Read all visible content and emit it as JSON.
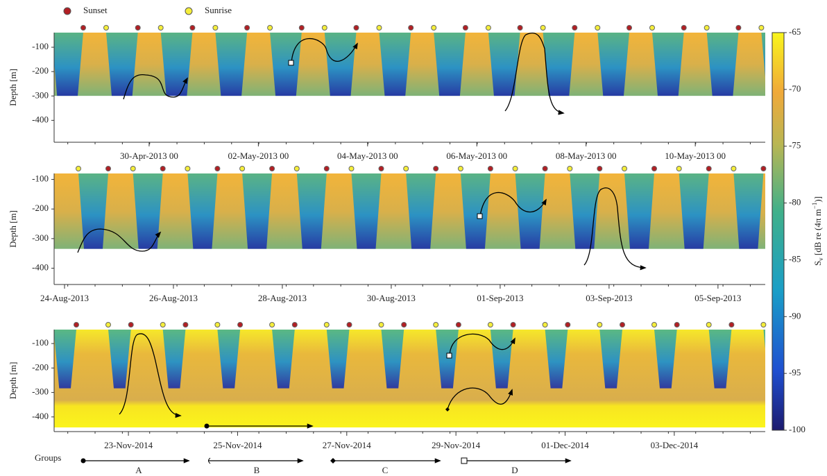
{
  "chart_data": [
    {
      "type": "heatmap",
      "ylabel": "Depth [m]",
      "ylim": [
        -490,
        -40
      ],
      "yticks": [
        -100,
        -200,
        -300,
        -400
      ],
      "xlim": [
        "2013-04-28T06:15",
        "2013-05-11T06:45"
      ],
      "xticks": [
        {
          "value": "2013-04-30T00:00",
          "label": "30-Apr-2013 00"
        },
        {
          "value": "2013-05-02T00:00",
          "label": "02-May-2013 00"
        },
        {
          "value": "2013-05-04T00:00",
          "label": "04-May-2013 00"
        },
        {
          "value": "2013-05-06T00:00",
          "label": "06-May-2013 00"
        },
        {
          "value": "2013-05-08T00:00",
          "label": "08-May-2013 00"
        },
        {
          "value": "2013-05-10T00:00",
          "label": "10-May-2013 00"
        }
      ]
    },
    {
      "type": "heatmap",
      "ylabel": "Depth [m]",
      "ylim": [
        -455,
        -80
      ],
      "yticks": [
        -100,
        -200,
        -300,
        -400
      ],
      "xlim": [
        "2013-08-23T19:25",
        "2013-09-05T20:50"
      ],
      "xticks": [
        {
          "value": "2013-08-24T00:00",
          "label": "24-Aug-2013"
        },
        {
          "value": "2013-08-26T00:00",
          "label": "26-Aug-2013"
        },
        {
          "value": "2013-08-28T00:00",
          "label": "28-Aug-2013"
        },
        {
          "value": "2013-08-30T00:00",
          "label": "30-Aug-2013"
        },
        {
          "value": "2013-09-01T00:00",
          "label": "01-Sep-2013"
        },
        {
          "value": "2013-09-03T00:00",
          "label": "03-Sep-2013"
        },
        {
          "value": "2013-09-05T00:00",
          "label": "05-Sep-2013"
        }
      ]
    },
    {
      "type": "heatmap",
      "ylabel": "Depth [m]",
      "ylim": [
        -460,
        -43
      ],
      "yticks": [
        -100,
        -200,
        -300,
        -400
      ],
      "xlim": [
        "2014-11-21T15:20",
        "2014-12-04T16:00"
      ],
      "xticks": [
        {
          "value": "2014-11-23T00:00",
          "label": "23-Nov-2014"
        },
        {
          "value": "2014-11-25T00:00",
          "label": "25-Nov-2014"
        },
        {
          "value": "2014-11-27T00:00",
          "label": "27-Nov-2014"
        },
        {
          "value": "2014-11-29T00:00",
          "label": "29-Nov-2014"
        },
        {
          "value": "2014-12-01T00:00",
          "label": "01-Dec-2014"
        },
        {
          "value": "2014-12-03T00:00",
          "label": "03-Dec-2014"
        }
      ]
    }
  ],
  "legend": [
    "Sunset",
    "Sunrise"
  ],
  "colorbar": {
    "ylim": [
      -100,
      -65
    ],
    "yticks": [
      -100,
      -95,
      -90,
      -85,
      -80,
      -75,
      -70,
      -65
    ],
    "label": [
      "S",
      "v",
      " [dB re (4π m",
      "−1",
      ")]"
    ]
  },
  "groups": {
    "title": "Groups",
    "names": [
      "A",
      "B",
      "C",
      "D"
    ]
  }
}
